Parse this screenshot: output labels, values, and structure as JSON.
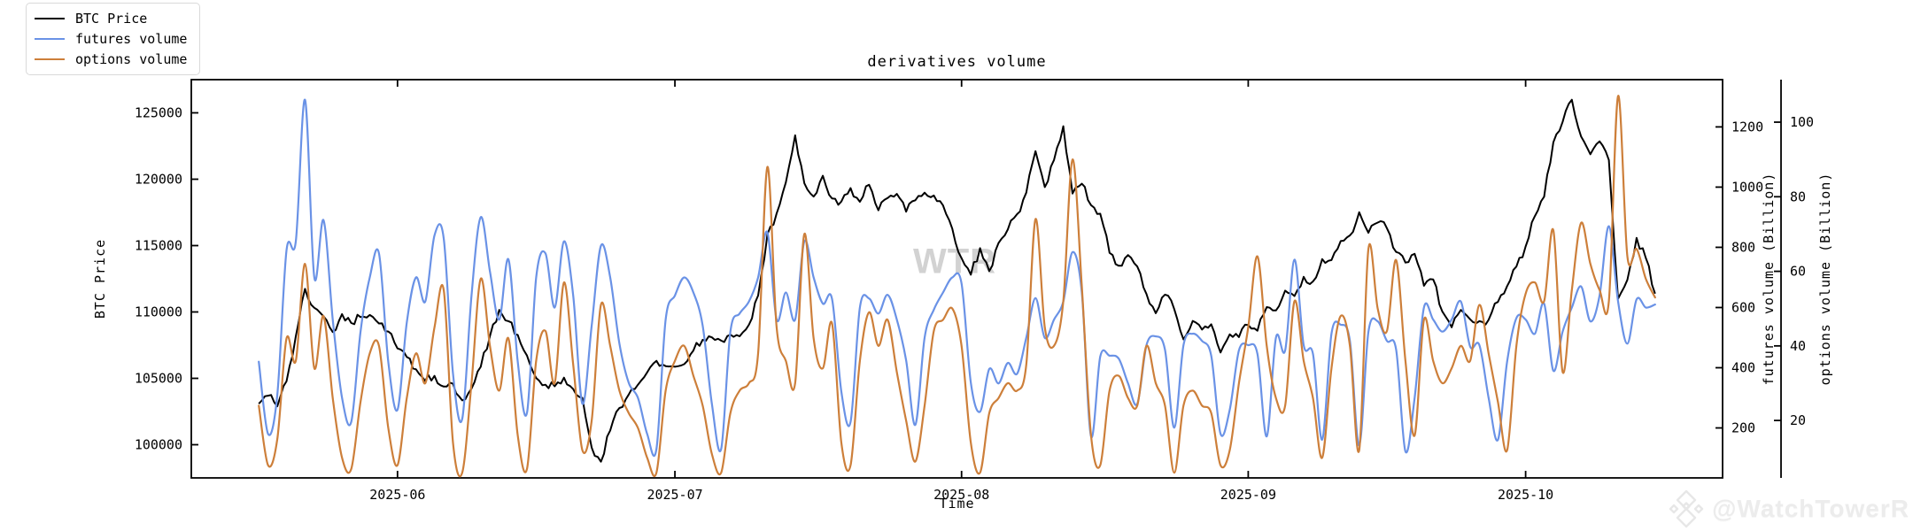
{
  "title": "derivatives volume",
  "watermarks": {
    "center": "WTR",
    "bottom": "@WatchTowerR",
    "bottom_icon": "diamond-logo"
  },
  "colors": {
    "btc": "#000000",
    "futures": "#6a92e6",
    "options": "#cd7f3a",
    "spine": "#000000",
    "watermark_center": "#d2d2d2",
    "watermark_bottom": "#ececec",
    "legend_border": "#d9d9d9"
  },
  "legend": {
    "items": [
      {
        "label": "BTC Price",
        "series": "btc"
      },
      {
        "label": "futures volume",
        "series": "futures"
      },
      {
        "label": "options volume",
        "series": "options"
      }
    ]
  },
  "axes": {
    "x": {
      "label": "Time",
      "tick_labels": [
        "2025-06",
        "2025-07",
        "2025-08",
        "2025-09",
        "2025-10"
      ],
      "tick_days": [
        15,
        45,
        76,
        107,
        137
      ]
    },
    "btc": {
      "label": "BTC Price",
      "ticks": [
        100000,
        105000,
        110000,
        115000,
        120000,
        125000
      ],
      "range": [
        97500,
        127500
      ]
    },
    "futures": {
      "label": "futures volume (Billion)",
      "ticks": [
        200,
        400,
        600,
        800,
        1000,
        1200
      ],
      "range": [
        34,
        1357
      ]
    },
    "options": {
      "label": "options volume (Billion)",
      "ticks": [
        20,
        40,
        60,
        80,
        100
      ],
      "range": [
        4.6,
        111.4
      ]
    }
  },
  "chart_data": {
    "type": "line",
    "title": "derivatives volume",
    "xlabel": "Time",
    "x_start_date": "2025-05-17",
    "x_step": "1 day",
    "x_range_days": [
      -7.3,
      158.3
    ],
    "grid": false,
    "legend_position": "upper-left-outside",
    "series": [
      {
        "name": "BTC Price",
        "axis": "btc",
        "style": "noisy-line",
        "values": [
          103200,
          103600,
          102800,
          104800,
          108300,
          111600,
          110300,
          109800,
          108500,
          109800,
          109100,
          109500,
          109900,
          109200,
          108600,
          107300,
          106500,
          105600,
          104700,
          105100,
          104300,
          104600,
          103400,
          104300,
          105900,
          108300,
          110100,
          109300,
          108300,
          106600,
          105100,
          104500,
          104400,
          105100,
          104200,
          103600,
          99900,
          98800,
          101200,
          102900,
          103900,
          104600,
          105400,
          106300,
          105900,
          105800,
          106200,
          107000,
          107800,
          108200,
          107900,
          108300,
          108100,
          108900,
          111200,
          115800,
          117400,
          119800,
          123200,
          119800,
          118600,
          120300,
          118500,
          118300,
          119300,
          118200,
          119500,
          117600,
          118700,
          119000,
          117500,
          118300,
          119000,
          118800,
          118000,
          116300,
          114000,
          112700,
          114800,
          113200,
          115100,
          116300,
          117500,
          119000,
          122100,
          119500,
          121500,
          123900,
          119000,
          119800,
          118100,
          117500,
          114500,
          113400,
          114300,
          113500,
          111300,
          109900,
          111400,
          110100,
          107800,
          109200,
          108700,
          109100,
          107000,
          108300,
          108000,
          108900,
          108600,
          110300,
          110000,
          111600,
          111300,
          112700,
          112400,
          114100,
          113800,
          115200,
          115900,
          117500,
          116100,
          116600,
          116300,
          114500,
          113600,
          114300,
          111900,
          112400,
          109900,
          108900,
          110200,
          109500,
          109300,
          109500,
          110700,
          111900,
          113400,
          114800,
          117300,
          118800,
          122700,
          124300,
          126100,
          123300,
          121900,
          122800,
          121500,
          110900,
          112300,
          115500,
          114100,
          111300
        ]
      },
      {
        "name": "futures volume",
        "axis": "futures",
        "style": "smooth-line",
        "values": [
          420,
          180,
          310,
          790,
          820,
          1290,
          700,
          890,
          560,
          300,
          220,
          520,
          700,
          780,
          420,
          260,
          550,
          700,
          620,
          840,
          830,
          380,
          230,
          640,
          900,
          720,
          560,
          760,
          420,
          250,
          700,
          780,
          600,
          820,
          640,
          280,
          540,
          805,
          700,
          480,
          350,
          300,
          180,
          130,
          560,
          640,
          700,
          650,
          540,
          280,
          130,
          520,
          580,
          620,
          700,
          850,
          560,
          650,
          560,
          820,
          700,
          613,
          628,
          320,
          220,
          600,
          630,
          580,
          642,
          560,
          425,
          210,
          500,
          593,
          650,
          700,
          680,
          350,
          254,
          396,
          348,
          416,
          380,
          500,
          631,
          499,
          560,
          620,
          784,
          650,
          172,
          437,
          440,
          430,
          348,
          280,
          475,
          504,
          460,
          201,
          475,
          513,
          489,
          440,
          181,
          260,
          458,
          475,
          446,
          172,
          500,
          458,
          759,
          475,
          446,
          161,
          513,
          543,
          489,
          142,
          519,
          554,
          489,
          460,
          122,
          300,
          600,
          560,
          520,
          560,
          620,
          470,
          475,
          300,
          160,
          420,
          565,
          560,
          513,
          613,
          390,
          520,
          600,
          670,
          554,
          640,
          870,
          620,
          480,
          627,
          600,
          610
        ]
      },
      {
        "name": "options volume",
        "axis": "options",
        "style": "smooth-line",
        "values": [
          24,
          8,
          15,
          42,
          36,
          62,
          34,
          48,
          26,
          10,
          7,
          25,
          38,
          40,
          18,
          8,
          26,
          38,
          30,
          45,
          55,
          14,
          6,
          30,
          58,
          40,
          28,
          42,
          16,
          7,
          36,
          44,
          30,
          57,
          35,
          12,
          20,
          51,
          40,
          28,
          22,
          18,
          10,
          6,
          28,
          36,
          40,
          32,
          24,
          11,
          6,
          22,
          28,
          30,
          38,
          88,
          45,
          36,
          30,
          70,
          42,
          34,
          46,
          14,
          8,
          36,
          49,
          40,
          47,
          33,
          20,
          9,
          24,
          44,
          47,
          50,
          40,
          14,
          6,
          22,
          26,
          30,
          28,
          35,
          74,
          45,
          40,
          52,
          90,
          56,
          16,
          8,
          28,
          32,
          26,
          24,
          40,
          30,
          24,
          6,
          24,
          28,
          24,
          22,
          8,
          12,
          30,
          45,
          64,
          40,
          26,
          24,
          52,
          36,
          26,
          10,
          34,
          48,
          40,
          12,
          66,
          50,
          44,
          63,
          36,
          16,
          47,
          36,
          30,
          34,
          40,
          36,
          51,
          38,
          25,
          12,
          40,
          54,
          57,
          52,
          71,
          33,
          55,
          73,
          62,
          55,
          52,
          107,
          64,
          66,
          58,
          53
        ]
      }
    ]
  }
}
